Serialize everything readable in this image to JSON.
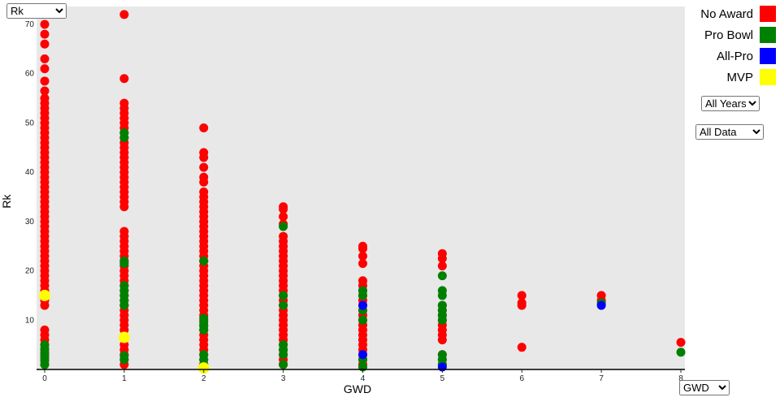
{
  "controls": {
    "y_axis_select": {
      "value": "Rk"
    },
    "x_axis_select": {
      "value": "GWD"
    },
    "years_select": {
      "value": "All Years"
    },
    "data_select": {
      "value": "All Data"
    }
  },
  "legend": {
    "items": [
      {
        "label": "No Award",
        "color": "#ff0000"
      },
      {
        "label": "Pro Bowl",
        "color": "#008000"
      },
      {
        "label": "All-Pro",
        "color": "#0000ff"
      },
      {
        "label": "MVP",
        "color": "#ffff00"
      }
    ]
  },
  "chart_data": {
    "type": "scatter",
    "title": "",
    "xlabel": "GWD",
    "ylabel": "Rk",
    "xlim": [
      0,
      8
    ],
    "ylim": [
      0,
      72
    ],
    "x_ticks": [
      0,
      1,
      2,
      3,
      4,
      5,
      6,
      7,
      8
    ],
    "y_ticks": [
      10,
      20,
      30,
      40,
      50,
      60,
      70
    ],
    "grid": false,
    "legend_position": "top-right",
    "plot_bg": "#e8e8e8",
    "series": [
      {
        "name": "No Award",
        "color": "#ff0000",
        "r": 5.5,
        "columns": {
          "0": [
            1,
            2,
            3,
            4,
            5,
            6,
            7,
            8,
            13,
            14,
            15,
            16,
            17,
            18,
            19,
            20,
            21,
            22,
            23,
            24,
            25,
            26,
            27,
            28,
            29,
            30,
            31,
            32,
            33,
            34,
            35,
            36,
            37,
            38,
            39,
            40,
            41,
            42,
            43,
            44,
            45,
            46,
            47,
            48,
            49,
            50,
            51,
            52,
            53,
            54,
            55,
            56.5,
            58.5,
            61,
            63,
            66,
            68,
            70
          ],
          "1": [
            1,
            2,
            3,
            4,
            5,
            8,
            9,
            10,
            11,
            12,
            13,
            14,
            15,
            16,
            17,
            18,
            19,
            20,
            21,
            22,
            23,
            24,
            25,
            26,
            27,
            28,
            33,
            34,
            35,
            36,
            37,
            38,
            39,
            40,
            41,
            42,
            43,
            44,
            45,
            46,
            47,
            48,
            49,
            50,
            51,
            52,
            53,
            54,
            59,
            72
          ],
          "2": [
            1,
            2,
            3,
            4,
            5,
            6,
            7,
            8,
            9,
            10,
            11,
            12,
            13,
            14,
            15,
            16,
            17,
            18,
            19,
            20,
            21,
            22,
            23,
            24,
            25,
            26,
            27,
            28,
            29,
            30,
            31,
            32,
            33,
            34,
            35,
            36,
            38,
            39,
            41,
            43,
            44,
            49
          ],
          "3": [
            1,
            2,
            3,
            4,
            5,
            6,
            7,
            8,
            9,
            10,
            11,
            12,
            13,
            14,
            15,
            16,
            17,
            18,
            19,
            20,
            21,
            22,
            23,
            24,
            25,
            26,
            27,
            29.5,
            31,
            32.5,
            33
          ],
          "4": [
            1,
            2,
            3,
            4,
            5,
            6,
            7,
            8,
            9,
            10,
            11,
            12,
            13,
            14,
            15,
            16,
            17,
            18,
            21.5,
            23,
            24.5,
            25
          ],
          "5": [
            1,
            2,
            3,
            6,
            7,
            8,
            9,
            10,
            11,
            12,
            13,
            21,
            22.5,
            23.5
          ],
          "6": [
            4.5,
            13,
            13.5,
            15
          ],
          "7": [
            14,
            15
          ],
          "8": [
            5.5
          ]
        }
      },
      {
        "name": "Pro Bowl",
        "color": "#008000",
        "r": 5.5,
        "columns": {
          "0": [
            1,
            1.8,
            2.6,
            3.4,
            4.2,
            5
          ],
          "1": [
            2,
            2.8,
            13,
            14,
            15,
            16,
            17,
            21.5,
            22,
            47,
            48
          ],
          "2": [
            1,
            2,
            3,
            8,
            8.8,
            9.6,
            10.4,
            22
          ],
          "3": [
            1,
            3,
            4,
            5,
            13,
            15,
            29
          ],
          "4": [
            0.5,
            2,
            10,
            12,
            15,
            16
          ],
          "5": [
            1,
            2,
            3,
            10,
            11,
            12,
            13,
            15,
            16,
            19
          ],
          "7": [
            13.5
          ],
          "8": [
            3.5
          ]
        }
      },
      {
        "name": "All-Pro",
        "color": "#0000ff",
        "r": 5.5,
        "columns": {
          "4": [
            3,
            13
          ],
          "5": [
            0.5
          ],
          "7": [
            13
          ]
        }
      },
      {
        "name": "MVP",
        "color": "#ffff00",
        "r": 7,
        "columns": {
          "0": [
            15
          ],
          "1": [
            6.5
          ],
          "2": [
            0.3
          ]
        }
      }
    ]
  }
}
